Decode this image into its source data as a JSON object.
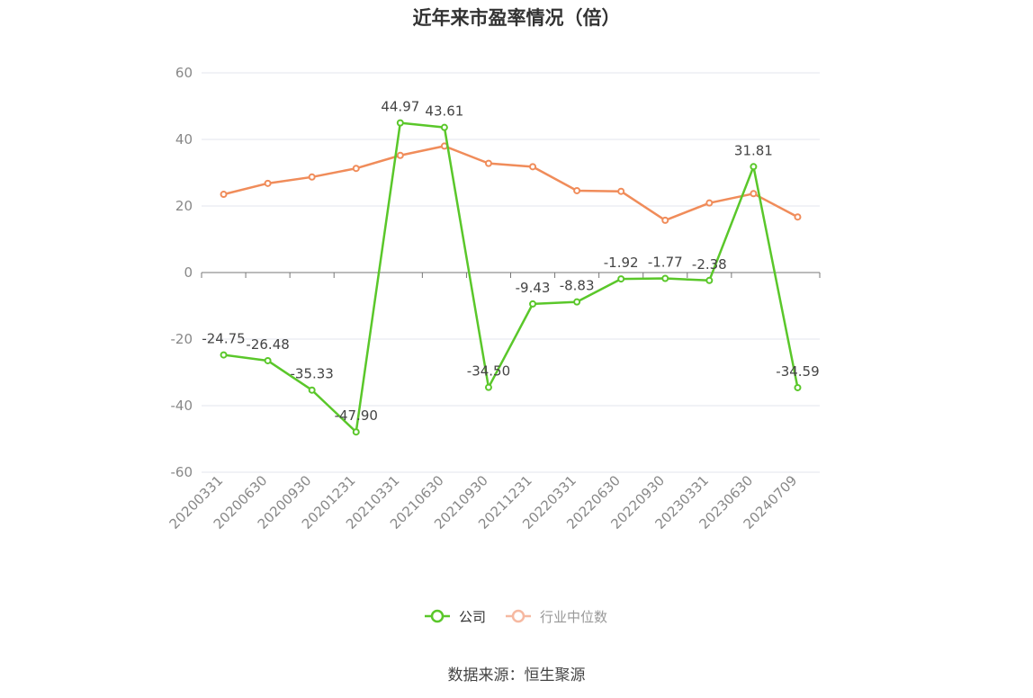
{
  "chart_data": {
    "type": "line",
    "title": "近年来市盈率情况（倍）",
    "categories": [
      "20200331",
      "20200630",
      "20200930",
      "20201231",
      "20210331",
      "20210630",
      "20210930",
      "20211231",
      "20220331",
      "20220630",
      "20220930",
      "20230331",
      "20230630",
      "20240709"
    ],
    "ylim": [
      -60,
      60
    ],
    "yticks": [
      60,
      40,
      20,
      0,
      -20,
      -40,
      -60
    ],
    "grid": true,
    "legend_position": "bottom-center",
    "series": [
      {
        "name": "公司",
        "color": "#5ac72a",
        "values": [
          -24.75,
          -26.48,
          -35.33,
          -47.9,
          44.97,
          43.61,
          -34.5,
          -9.43,
          -8.83,
          -1.92,
          -1.77,
          -2.38,
          31.81,
          -34.59
        ],
        "labels": [
          "-24.75",
          "-26.48",
          "-35.33",
          "-47.90",
          "44.97",
          "43.61",
          "-34.50",
          "-9.43",
          "-8.83",
          "-1.92",
          "-1.77",
          "-2.38",
          "31.81",
          "-34.59"
        ],
        "show_labels": true
      },
      {
        "name": "行业中位数",
        "color": "#f08c5a",
        "values": [
          23.5,
          26.8,
          28.7,
          31.3,
          35.2,
          38.0,
          32.8,
          31.8,
          24.6,
          24.4,
          15.7,
          20.9,
          23.7,
          16.7
        ],
        "show_labels": false
      }
    ]
  },
  "source": "数据来源：恒生聚源"
}
